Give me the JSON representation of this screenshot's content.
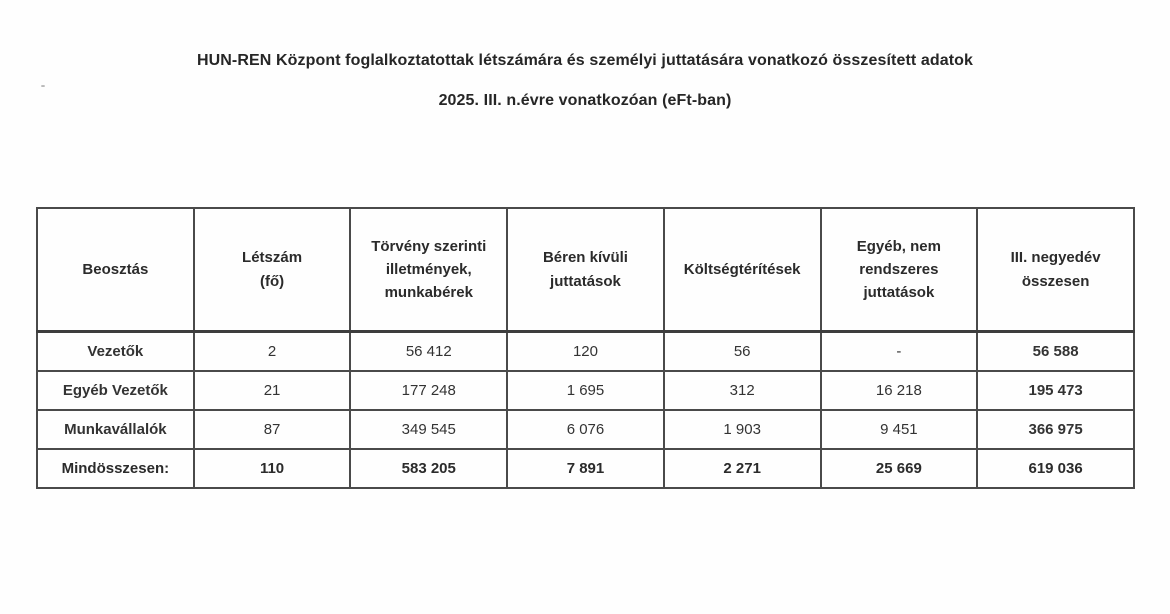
{
  "doc": {
    "title": "HUN-REN Központ foglalkoztatottak létszámára és személyi juttatására vonatkozó összesített adatok",
    "subtitle": "2025. III. n.évre vonatkozóan (eFt-ban)"
  },
  "table": {
    "headers": [
      "Beosztás",
      "Létszám\n(fő)",
      "Törvény szerinti\nilletmények,\nmunkabérek",
      "Béren kívüli\njuttatások",
      "Költségtérítések",
      "Egyéb, nem\nrendszeres\njuttatások",
      "III. negyedév\nösszesen"
    ],
    "rows": [
      [
        "Vezetők",
        "2",
        "56 412",
        "120",
        "56",
        "-",
        "56 588"
      ],
      [
        "Egyéb Vezetők",
        "21",
        "177 248",
        "1 695",
        "312",
        "16 218",
        "195 473"
      ],
      [
        "Munkavállalók",
        "87",
        "349 545",
        "6 076",
        "1 903",
        "9 451",
        "366 975"
      ],
      [
        "Mindösszesen:",
        "110",
        "583 205",
        "7 891",
        "2 271",
        "25 669",
        "619 036"
      ]
    ]
  }
}
